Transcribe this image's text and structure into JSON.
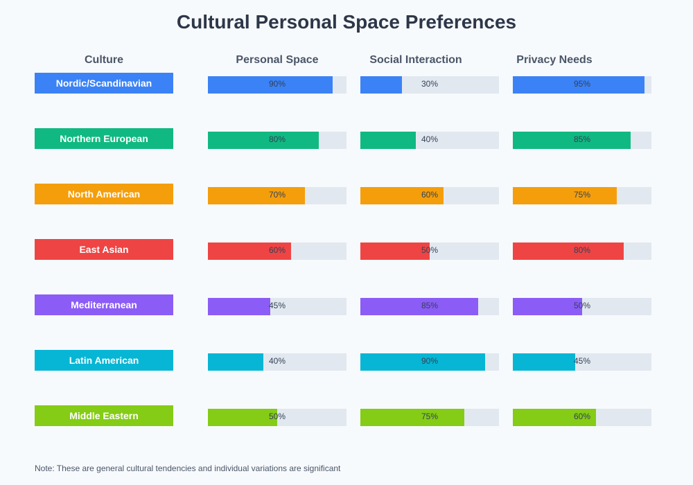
{
  "title": "Cultural Personal Space Preferences",
  "headers": {
    "culture": "Culture",
    "metrics": [
      "Personal Space",
      "Social Interaction",
      "Privacy Needs"
    ]
  },
  "note": "Note: These are general cultural tendencies and individual variations are significant",
  "colors": {
    "track": "#e2e8f0",
    "background": "#f7fafc",
    "title": "#2d3748",
    "header": "#4a5568",
    "value_text": "#334155"
  },
  "chart_data": {
    "type": "bar",
    "orientation": "horizontal",
    "unit": "%",
    "xlim": [
      0,
      100
    ],
    "categories": [
      "Nordic/Scandinavian",
      "Northern European",
      "North American",
      "East Asian",
      "Mediterranean",
      "Latin American",
      "Middle Eastern"
    ],
    "category_colors": [
      "#3b82f6",
      "#10b981",
      "#f59e0b",
      "#ef4444",
      "#8b5cf6",
      "#06b6d4",
      "#84cc16"
    ],
    "series": [
      {
        "name": "Personal Space",
        "values": [
          90,
          80,
          70,
          60,
          45,
          40,
          50
        ]
      },
      {
        "name": "Social Interaction",
        "values": [
          30,
          40,
          60,
          50,
          85,
          90,
          75
        ]
      },
      {
        "name": "Privacy Needs",
        "values": [
          95,
          85,
          75,
          80,
          50,
          45,
          60
        ]
      }
    ]
  }
}
